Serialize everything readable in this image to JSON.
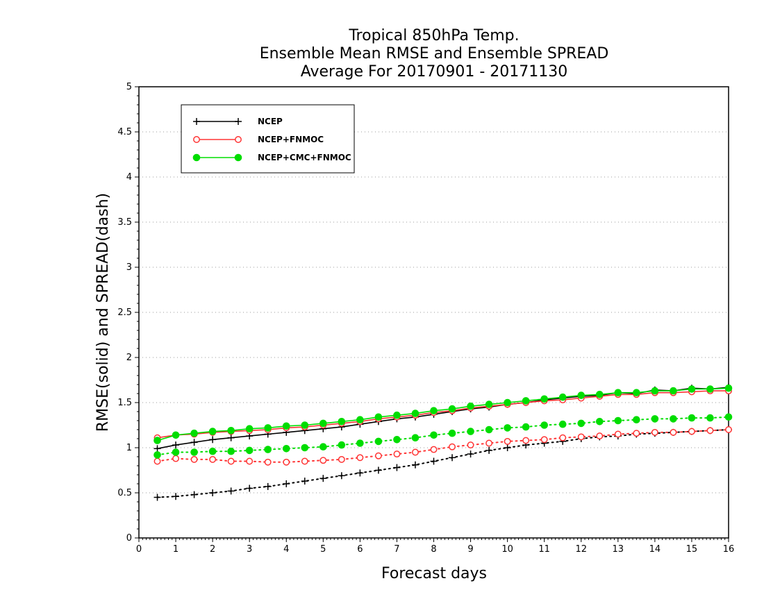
{
  "chart_data": {
    "type": "line",
    "title": [
      "Tropical 850hPa Temp.",
      "Ensemble Mean RMSE and Ensemble SPREAD",
      "Average For 20170901 - 20171130"
    ],
    "xlabel": "Forecast days",
    "ylabel": "RMSE(solid) and SPREAD(dash)",
    "xlim": [
      0,
      16
    ],
    "ylim": [
      0,
      5
    ],
    "xticks": [
      "0",
      "1",
      "2",
      "3",
      "4",
      "5",
      "6",
      "7",
      "8",
      "9",
      "10",
      "11",
      "12",
      "13",
      "14",
      "15",
      "16"
    ],
    "yticks": [
      "0",
      "0.5",
      "1",
      "1.5",
      "2",
      "2.5",
      "3",
      "3.5",
      "4",
      "4.5",
      "5"
    ],
    "grid": "horizontal dotted",
    "legend_position": "top-left",
    "x": [
      0.5,
      1,
      1.5,
      2,
      2.5,
      3,
      3.5,
      4,
      4.5,
      5,
      5.5,
      6,
      6.5,
      7,
      7.5,
      8,
      8.5,
      9,
      9.5,
      10,
      10.5,
      11,
      11.5,
      12,
      12.5,
      13,
      13.5,
      14,
      14.5,
      15,
      15.5,
      16
    ],
    "series": [
      {
        "name": "NCEP",
        "color": "#000000",
        "marker": "plus",
        "rmse": [
          0.99,
          1.03,
          1.06,
          1.09,
          1.11,
          1.13,
          1.15,
          1.17,
          1.19,
          1.21,
          1.23,
          1.26,
          1.29,
          1.32,
          1.34,
          1.37,
          1.4,
          1.43,
          1.45,
          1.48,
          1.5,
          1.53,
          1.55,
          1.57,
          1.58,
          1.61,
          1.6,
          1.64,
          1.63,
          1.66,
          1.65,
          1.67
        ],
        "spread": [
          0.45,
          0.46,
          0.48,
          0.5,
          0.52,
          0.55,
          0.57,
          0.6,
          0.63,
          0.66,
          0.69,
          0.72,
          0.75,
          0.78,
          0.81,
          0.85,
          0.89,
          0.93,
          0.97,
          1.0,
          1.03,
          1.05,
          1.07,
          1.1,
          1.12,
          1.13,
          1.15,
          1.16,
          1.17,
          1.18,
          1.19,
          1.2
        ]
      },
      {
        "name": "NCEP+FNMOC",
        "color": "#ff3333",
        "marker": "open-circle",
        "rmse": [
          1.11,
          1.14,
          1.15,
          1.17,
          1.18,
          1.19,
          1.2,
          1.22,
          1.23,
          1.25,
          1.27,
          1.29,
          1.32,
          1.34,
          1.36,
          1.39,
          1.41,
          1.44,
          1.46,
          1.48,
          1.5,
          1.52,
          1.53,
          1.55,
          1.57,
          1.59,
          1.59,
          1.61,
          1.61,
          1.62,
          1.63,
          1.63
        ],
        "spread": [
          0.85,
          0.88,
          0.87,
          0.87,
          0.85,
          0.85,
          0.84,
          0.84,
          0.85,
          0.86,
          0.87,
          0.89,
          0.91,
          0.93,
          0.95,
          0.98,
          1.01,
          1.03,
          1.05,
          1.07,
          1.08,
          1.09,
          1.11,
          1.12,
          1.13,
          1.15,
          1.16,
          1.17,
          1.17,
          1.18,
          1.19,
          1.2
        ]
      },
      {
        "name": "NCEP+CMC+FNMOC",
        "color": "#00dd00",
        "marker": "filled-circle",
        "rmse": [
          1.08,
          1.14,
          1.16,
          1.18,
          1.19,
          1.21,
          1.22,
          1.24,
          1.25,
          1.27,
          1.29,
          1.31,
          1.34,
          1.36,
          1.38,
          1.41,
          1.43,
          1.46,
          1.48,
          1.5,
          1.52,
          1.54,
          1.56,
          1.58,
          1.59,
          1.61,
          1.61,
          1.63,
          1.63,
          1.65,
          1.65,
          1.66
        ],
        "spread": [
          0.92,
          0.95,
          0.95,
          0.96,
          0.96,
          0.97,
          0.98,
          0.99,
          1.0,
          1.01,
          1.03,
          1.05,
          1.07,
          1.09,
          1.11,
          1.14,
          1.16,
          1.18,
          1.2,
          1.22,
          1.23,
          1.25,
          1.26,
          1.27,
          1.29,
          1.3,
          1.31,
          1.32,
          1.32,
          1.33,
          1.33,
          1.34
        ]
      }
    ]
  }
}
